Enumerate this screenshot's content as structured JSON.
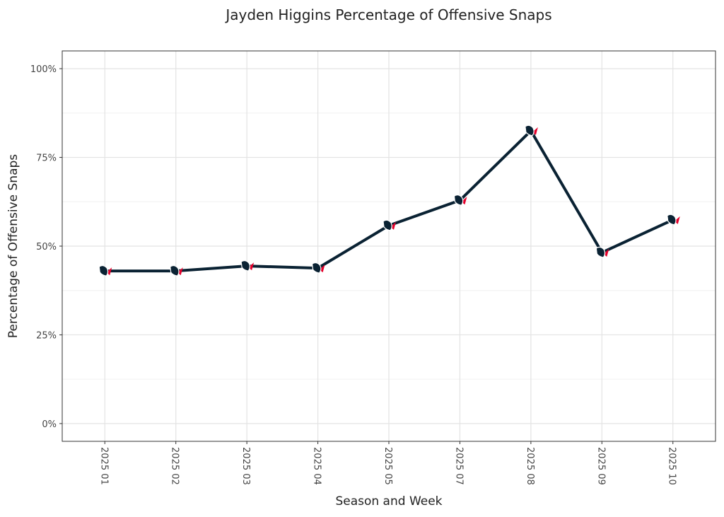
{
  "chart_data": {
    "type": "line",
    "title": "Jayden Higgins Percentage of Offensive Snaps",
    "x_label": "Season and Week",
    "y_label": "Percentage of Offensive Snaps",
    "categories": [
      "2025 01",
      "2025 02",
      "2025 03",
      "2025 04",
      "2025 05",
      "2025 07",
      "2025 08",
      "2025 09",
      "2025 10"
    ],
    "values": [
      43.0,
      43.0,
      44.4,
      43.8,
      55.8,
      62.9,
      82.5,
      48.2,
      57.4
    ],
    "color": "#0a2233",
    "marker_accent": "#e4002b",
    "ylim": [
      -5,
      105
    ],
    "yticks": [
      {
        "value": 0,
        "label": "0%"
      },
      {
        "value": 25,
        "label": "25%"
      },
      {
        "value": 50,
        "label": "50%"
      },
      {
        "value": 75,
        "label": "75%"
      },
      {
        "value": 100,
        "label": "100%"
      }
    ],
    "grid": true
  }
}
